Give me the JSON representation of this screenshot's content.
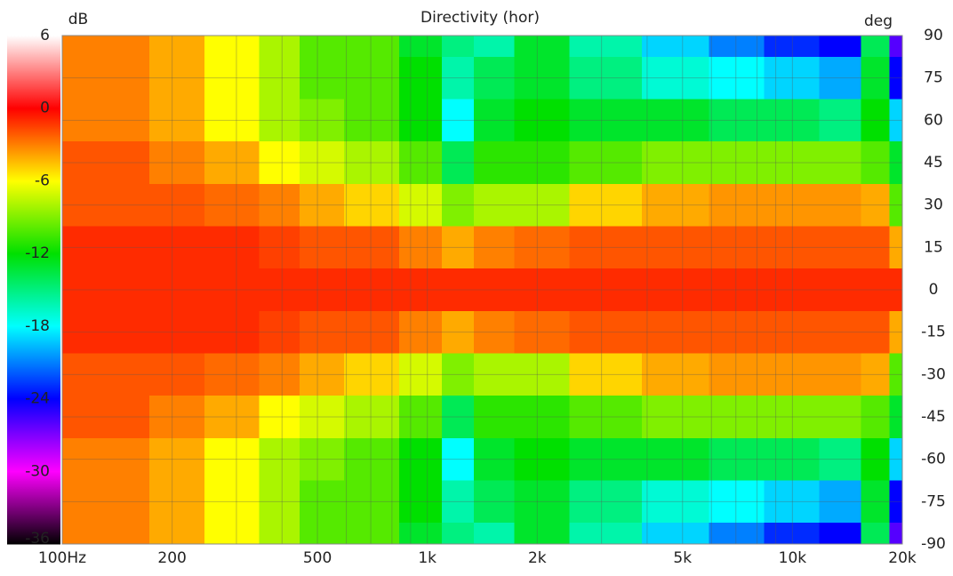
{
  "chart_data": {
    "type": "heatmap",
    "title": "Directivity (hor)",
    "colorbar_label": "dB",
    "y_label": "deg",
    "x": [
      100,
      150,
      200,
      300,
      400,
      500,
      700,
      1000,
      1200,
      1500,
      2000,
      3000,
      5000,
      7000,
      10000,
      14000,
      17000,
      20000
    ],
    "y": [
      90,
      75,
      60,
      45,
      30,
      15,
      0,
      -15,
      -30,
      -45,
      -60,
      -75,
      -90
    ],
    "z": [
      [
        -3,
        -3,
        -4,
        -6,
        -8,
        -10,
        -10,
        -13,
        -15,
        -16,
        -13,
        -16,
        -19,
        -21,
        -23,
        -24,
        -14,
        -26
      ],
      [
        -3,
        -3,
        -4,
        -6,
        -8,
        -10,
        -10,
        -12,
        -16,
        -14,
        -13,
        -15,
        -17,
        -18,
        -19,
        -20,
        -13,
        -24
      ],
      [
        -3,
        -3,
        -4,
        -6,
        -8,
        -9,
        -10,
        -12,
        -18,
        -13,
        -12,
        -13,
        -13,
        -14,
        -14,
        -15,
        -12,
        -19
      ],
      [
        -2,
        -2,
        -3,
        -4,
        -6,
        -7,
        -8,
        -10,
        -14,
        -11,
        -11,
        -10,
        -9,
        -9,
        -9,
        -9,
        -10,
        -13
      ],
      [
        -2,
        -2,
        -2,
        -2.5,
        -3,
        -4,
        -5,
        -7,
        -9,
        -8,
        -8,
        -5,
        -4,
        -3.5,
        -3.5,
        -3.5,
        -4,
        -10
      ],
      [
        -1,
        -1,
        -1,
        -1,
        -1.5,
        -2,
        -2,
        -3,
        -4,
        -3,
        -2.5,
        -2,
        -2,
        -2,
        -2,
        -2,
        -2,
        -4
      ],
      [
        -1,
        -1,
        -1,
        -1,
        -1,
        -1,
        -1,
        -1,
        -1,
        -1,
        -1,
        -1,
        -1,
        -1,
        -1,
        -1,
        -1,
        -1
      ],
      [
        -1,
        -1,
        -1,
        -1,
        -1.5,
        -2,
        -2,
        -3,
        -4,
        -3,
        -2.5,
        -2,
        -2,
        -2,
        -2,
        -2,
        -2,
        -4
      ],
      [
        -2,
        -2,
        -2,
        -2.5,
        -3,
        -4,
        -5,
        -7,
        -9,
        -8,
        -8,
        -5,
        -4,
        -3.5,
        -3.5,
        -3.5,
        -4,
        -10
      ],
      [
        -2,
        -2,
        -3,
        -4,
        -6,
        -7,
        -8,
        -10,
        -14,
        -11,
        -11,
        -10,
        -9,
        -9,
        -9,
        -9,
        -10,
        -13
      ],
      [
        -3,
        -3,
        -4,
        -6,
        -8,
        -9,
        -10,
        -12,
        -18,
        -13,
        -12,
        -13,
        -13,
        -14,
        -14,
        -15,
        -12,
        -19
      ],
      [
        -3,
        -3,
        -4,
        -6,
        -8,
        -10,
        -10,
        -12,
        -16,
        -14,
        -13,
        -15,
        -17,
        -18,
        -19,
        -20,
        -13,
        -24
      ],
      [
        -3,
        -3,
        -4,
        -6,
        -8,
        -10,
        -10,
        -13,
        -15,
        -16,
        -13,
        -16,
        -19,
        -21,
        -23,
        -24,
        -14,
        -26
      ]
    ],
    "xlim": [
      100,
      20000
    ],
    "log_x": true,
    "xticks": [
      {
        "value": 100,
        "label": "100Hz"
      },
      200,
      500,
      {
        "value": 1000,
        "label": "1k"
      },
      {
        "value": 2000,
        "label": "2k"
      },
      {
        "value": 5000,
        "label": "5k"
      },
      {
        "value": 10000,
        "label": "10k"
      },
      {
        "value": 20000,
        "label": "20k"
      }
    ],
    "xminor": [
      300,
      400,
      600,
      700,
      800,
      900,
      3000,
      4000,
      6000,
      7000,
      8000,
      9000
    ],
    "ylim": [
      -90,
      90
    ],
    "yticks": [
      90,
      75,
      60,
      45,
      30,
      15,
      0,
      -15,
      -30,
      -45,
      -60,
      -75,
      -90
    ],
    "clim": [
      -36,
      6
    ],
    "cticks": [
      6,
      0,
      -6,
      -12,
      -18,
      -24,
      -30,
      -36
    ],
    "colorscale": [
      [
        6,
        "#ffffff"
      ],
      [
        0,
        "#ff0000"
      ],
      [
        -6,
        "#ffff00"
      ],
      [
        -12,
        "#00e000"
      ],
      [
        -18,
        "#00ffff"
      ],
      [
        -24,
        "#0000ff"
      ],
      [
        -30,
        "#ff00ff"
      ],
      [
        -36,
        "#000000"
      ]
    ],
    "grid": true
  }
}
